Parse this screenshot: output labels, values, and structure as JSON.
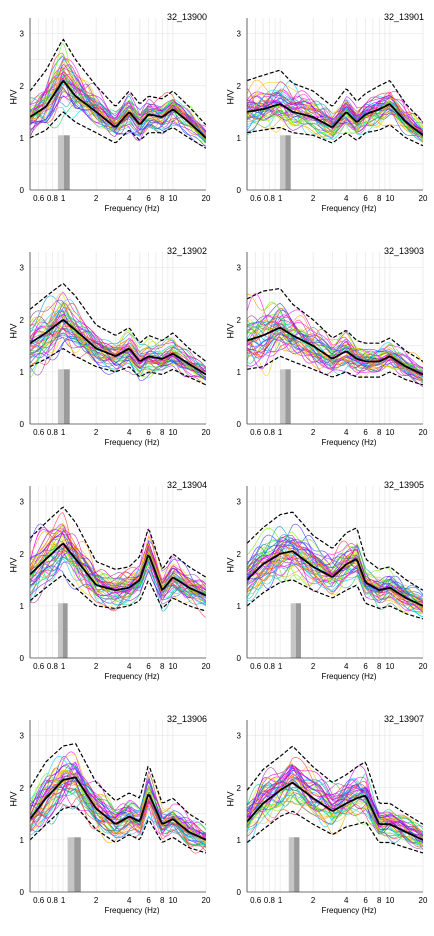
{
  "axes": {
    "ylabel": "H/V",
    "xlabel": "Frequency (Hz)",
    "x_ticks": [
      "0.6",
      "0.8",
      "1",
      "2",
      "4",
      "6",
      "8",
      "10",
      "20"
    ],
    "y_ticks": [
      "0",
      "1",
      "2",
      "3"
    ]
  },
  "palette": [
    "#ff00ff",
    "#cc00cc",
    "#9900ff",
    "#3333ff",
    "#00ccff",
    "#00cc66",
    "#66ff00",
    "#ff9900",
    "#ff3333",
    "#ffcc00",
    "#993399",
    "#0099cc"
  ],
  "chart_data": [
    {
      "type": "line",
      "title": "32_13900",
      "x_scale": "log",
      "xlim": [
        0.5,
        20
      ],
      "ylim": [
        0,
        3.3
      ],
      "mean_hv": {
        "x": [
          0.5,
          0.7,
          1.0,
          1.3,
          2,
          3,
          4,
          5,
          6,
          8,
          10,
          14,
          20
        ],
        "y": [
          1.4,
          1.6,
          2.1,
          1.8,
          1.5,
          1.2,
          1.5,
          1.25,
          1.45,
          1.4,
          1.55,
          1.3,
          1.0
        ]
      },
      "std_upper": {
        "x": [
          0.5,
          0.7,
          1.0,
          1.3,
          2,
          3,
          4,
          5,
          6,
          8,
          10,
          14,
          20
        ],
        "y": [
          1.9,
          2.3,
          2.9,
          2.5,
          2.0,
          1.6,
          1.9,
          1.65,
          1.8,
          1.75,
          1.9,
          1.6,
          1.25
        ]
      },
      "std_lower": {
        "x": [
          0.5,
          0.7,
          1.0,
          1.3,
          2,
          3,
          4,
          5,
          6,
          8,
          10,
          14,
          20
        ],
        "y": [
          1.0,
          1.15,
          1.5,
          1.3,
          1.1,
          0.9,
          1.15,
          0.95,
          1.1,
          1.1,
          1.2,
          1.0,
          0.8
        ]
      },
      "f0_band": [
        0.9,
        1.15
      ]
    },
    {
      "type": "line",
      "title": "32_13901",
      "x_scale": "log",
      "xlim": [
        0.5,
        20
      ],
      "ylim": [
        0,
        3.3
      ],
      "mean_hv": {
        "x": [
          0.5,
          0.7,
          1.0,
          1.3,
          2,
          3,
          4,
          5,
          6,
          8,
          10,
          14,
          20
        ],
        "y": [
          1.5,
          1.55,
          1.65,
          1.5,
          1.4,
          1.2,
          1.5,
          1.3,
          1.45,
          1.55,
          1.65,
          1.3,
          1.05
        ]
      },
      "std_upper": {
        "x": [
          0.5,
          0.7,
          1.0,
          1.3,
          2,
          3,
          4,
          5,
          6,
          8,
          10,
          14,
          20
        ],
        "y": [
          2.1,
          2.2,
          2.3,
          2.05,
          1.9,
          1.6,
          1.95,
          1.7,
          1.85,
          2.0,
          2.1,
          1.65,
          1.3
        ]
      },
      "std_lower": {
        "x": [
          0.5,
          0.7,
          1.0,
          1.3,
          2,
          3,
          4,
          5,
          6,
          8,
          10,
          14,
          20
        ],
        "y": [
          1.1,
          1.15,
          1.2,
          1.1,
          1.05,
          0.9,
          1.1,
          0.95,
          1.1,
          1.15,
          1.25,
          1.0,
          0.85
        ]
      },
      "f0_band": [
        1.0,
        1.25
      ]
    },
    {
      "type": "line",
      "title": "32_13902",
      "x_scale": "log",
      "xlim": [
        0.5,
        20
      ],
      "ylim": [
        0,
        3.3
      ],
      "mean_hv": {
        "x": [
          0.5,
          0.7,
          1.0,
          1.3,
          2,
          3,
          4,
          5,
          6,
          8,
          10,
          14,
          20
        ],
        "y": [
          1.55,
          1.75,
          2.0,
          1.8,
          1.45,
          1.3,
          1.45,
          1.2,
          1.3,
          1.25,
          1.35,
          1.15,
          0.95
        ]
      },
      "std_upper": {
        "x": [
          0.5,
          0.7,
          1.0,
          1.3,
          2,
          3,
          4,
          5,
          6,
          8,
          10,
          14,
          20
        ],
        "y": [
          2.2,
          2.45,
          2.7,
          2.45,
          1.9,
          1.7,
          1.85,
          1.55,
          1.7,
          1.6,
          1.75,
          1.45,
          1.2
        ]
      },
      "std_lower": {
        "x": [
          0.5,
          0.7,
          1.0,
          1.3,
          2,
          3,
          4,
          5,
          6,
          8,
          10,
          14,
          20
        ],
        "y": [
          1.1,
          1.25,
          1.45,
          1.3,
          1.1,
          1.0,
          1.1,
          0.9,
          1.0,
          0.95,
          1.05,
          0.9,
          0.75
        ]
      },
      "f0_band": [
        0.9,
        1.15
      ]
    },
    {
      "type": "line",
      "title": "32_13903",
      "x_scale": "log",
      "xlim": [
        0.5,
        20
      ],
      "ylim": [
        0,
        3.3
      ],
      "mean_hv": {
        "x": [
          0.5,
          0.7,
          1.0,
          1.3,
          2,
          3,
          4,
          5,
          6,
          8,
          10,
          14,
          20
        ],
        "y": [
          1.6,
          1.7,
          1.85,
          1.7,
          1.5,
          1.25,
          1.4,
          1.25,
          1.2,
          1.2,
          1.3,
          1.1,
          0.95
        ]
      },
      "std_upper": {
        "x": [
          0.5,
          0.7,
          1.0,
          1.3,
          2,
          3,
          4,
          5,
          6,
          8,
          10,
          14,
          20
        ],
        "y": [
          2.4,
          2.55,
          2.6,
          2.3,
          2.0,
          1.65,
          1.8,
          1.6,
          1.55,
          1.55,
          1.65,
          1.4,
          1.2
        ]
      },
      "std_lower": {
        "x": [
          0.5,
          0.7,
          1.0,
          1.3,
          2,
          3,
          4,
          5,
          6,
          8,
          10,
          14,
          20
        ],
        "y": [
          1.05,
          1.1,
          1.3,
          1.2,
          1.05,
          0.9,
          1.0,
          0.9,
          0.9,
          0.9,
          1.0,
          0.85,
          0.75
        ]
      },
      "f0_band": [
        1.0,
        1.25
      ]
    },
    {
      "type": "line",
      "title": "32_13904",
      "x_scale": "log",
      "xlim": [
        0.5,
        20
      ],
      "ylim": [
        0,
        3.3
      ],
      "mean_hv": {
        "x": [
          0.5,
          0.7,
          1.0,
          1.3,
          2,
          3,
          4,
          5,
          6,
          8,
          10,
          14,
          20
        ],
        "y": [
          1.6,
          1.9,
          2.2,
          1.9,
          1.4,
          1.3,
          1.35,
          1.5,
          2.0,
          1.3,
          1.55,
          1.35,
          1.2
        ]
      },
      "std_upper": {
        "x": [
          0.5,
          0.7,
          1.0,
          1.3,
          2,
          3,
          4,
          5,
          6,
          8,
          10,
          14,
          20
        ],
        "y": [
          2.3,
          2.6,
          2.9,
          2.6,
          1.85,
          1.7,
          1.75,
          1.95,
          2.5,
          1.7,
          2.0,
          1.75,
          1.55
        ]
      },
      "std_lower": {
        "x": [
          0.5,
          0.7,
          1.0,
          1.3,
          2,
          3,
          4,
          5,
          6,
          8,
          10,
          14,
          20
        ],
        "y": [
          1.1,
          1.35,
          1.6,
          1.35,
          1.0,
          0.95,
          1.0,
          1.1,
          1.5,
          0.95,
          1.15,
          1.0,
          0.9
        ]
      },
      "f0_band": [
        0.9,
        1.1
      ]
    },
    {
      "type": "line",
      "title": "32_13905",
      "x_scale": "log",
      "xlim": [
        0.5,
        20
      ],
      "ylim": [
        0,
        3.3
      ],
      "mean_hv": {
        "x": [
          0.5,
          0.7,
          1.0,
          1.3,
          2,
          3,
          4,
          5,
          6,
          8,
          10,
          14,
          20
        ],
        "y": [
          1.5,
          1.8,
          2.0,
          2.05,
          1.75,
          1.55,
          1.8,
          1.9,
          1.45,
          1.3,
          1.35,
          1.15,
          1.0
        ]
      },
      "std_upper": {
        "x": [
          0.5,
          0.7,
          1.0,
          1.3,
          2,
          3,
          4,
          5,
          6,
          8,
          10,
          14,
          20
        ],
        "y": [
          2.2,
          2.5,
          2.75,
          2.8,
          2.35,
          2.1,
          2.4,
          2.5,
          1.9,
          1.7,
          1.75,
          1.5,
          1.3
        ]
      },
      "std_lower": {
        "x": [
          0.5,
          0.7,
          1.0,
          1.3,
          2,
          3,
          4,
          5,
          6,
          8,
          10,
          14,
          20
        ],
        "y": [
          1.0,
          1.25,
          1.45,
          1.5,
          1.3,
          1.15,
          1.3,
          1.4,
          1.05,
          0.95,
          1.0,
          0.85,
          0.75
        ]
      },
      "f0_band": [
        1.25,
        1.55
      ]
    },
    {
      "type": "line",
      "title": "32_13906",
      "x_scale": "log",
      "xlim": [
        0.5,
        20
      ],
      "ylim": [
        0,
        3.3
      ],
      "mean_hv": {
        "x": [
          0.5,
          0.7,
          1.0,
          1.3,
          2,
          3,
          4,
          5,
          6,
          8,
          10,
          14,
          20
        ],
        "y": [
          1.4,
          1.8,
          2.15,
          2.2,
          1.6,
          1.3,
          1.45,
          1.35,
          1.9,
          1.3,
          1.4,
          1.15,
          1.0
        ]
      },
      "std_upper": {
        "x": [
          0.5,
          0.7,
          1.0,
          1.3,
          2,
          3,
          4,
          5,
          6,
          8,
          10,
          14,
          20
        ],
        "y": [
          2.0,
          2.5,
          2.8,
          2.85,
          2.1,
          1.75,
          1.9,
          1.8,
          2.45,
          1.7,
          1.8,
          1.5,
          1.3
        ]
      },
      "std_lower": {
        "x": [
          0.5,
          0.7,
          1.0,
          1.3,
          2,
          3,
          4,
          5,
          6,
          8,
          10,
          14,
          20
        ],
        "y": [
          1.0,
          1.3,
          1.6,
          1.65,
          1.2,
          0.95,
          1.1,
          1.0,
          1.4,
          0.95,
          1.05,
          0.85,
          0.75
        ]
      },
      "f0_band": [
        1.1,
        1.45
      ]
    },
    {
      "type": "line",
      "title": "32_13907",
      "x_scale": "log",
      "xlim": [
        0.5,
        20
      ],
      "ylim": [
        0,
        3.3
      ],
      "mean_hv": {
        "x": [
          0.5,
          0.7,
          1.0,
          1.3,
          2,
          3,
          4,
          5,
          6,
          8,
          10,
          14,
          20
        ],
        "y": [
          1.35,
          1.7,
          1.95,
          2.1,
          1.8,
          1.55,
          1.7,
          1.8,
          1.85,
          1.3,
          1.3,
          1.15,
          1.0
        ]
      },
      "std_upper": {
        "x": [
          0.5,
          0.7,
          1.0,
          1.3,
          2,
          3,
          4,
          5,
          6,
          8,
          10,
          14,
          20
        ],
        "y": [
          1.95,
          2.35,
          2.6,
          2.8,
          2.4,
          2.1,
          2.25,
          2.4,
          2.5,
          1.7,
          1.7,
          1.5,
          1.3
        ]
      },
      "std_lower": {
        "x": [
          0.5,
          0.7,
          1.0,
          1.3,
          2,
          3,
          4,
          5,
          6,
          8,
          10,
          14,
          20
        ],
        "y": [
          0.95,
          1.2,
          1.45,
          1.55,
          1.3,
          1.1,
          1.25,
          1.3,
          1.35,
          0.95,
          0.95,
          0.85,
          0.75
        ]
      },
      "f0_band": [
        1.2,
        1.5
      ]
    }
  ]
}
